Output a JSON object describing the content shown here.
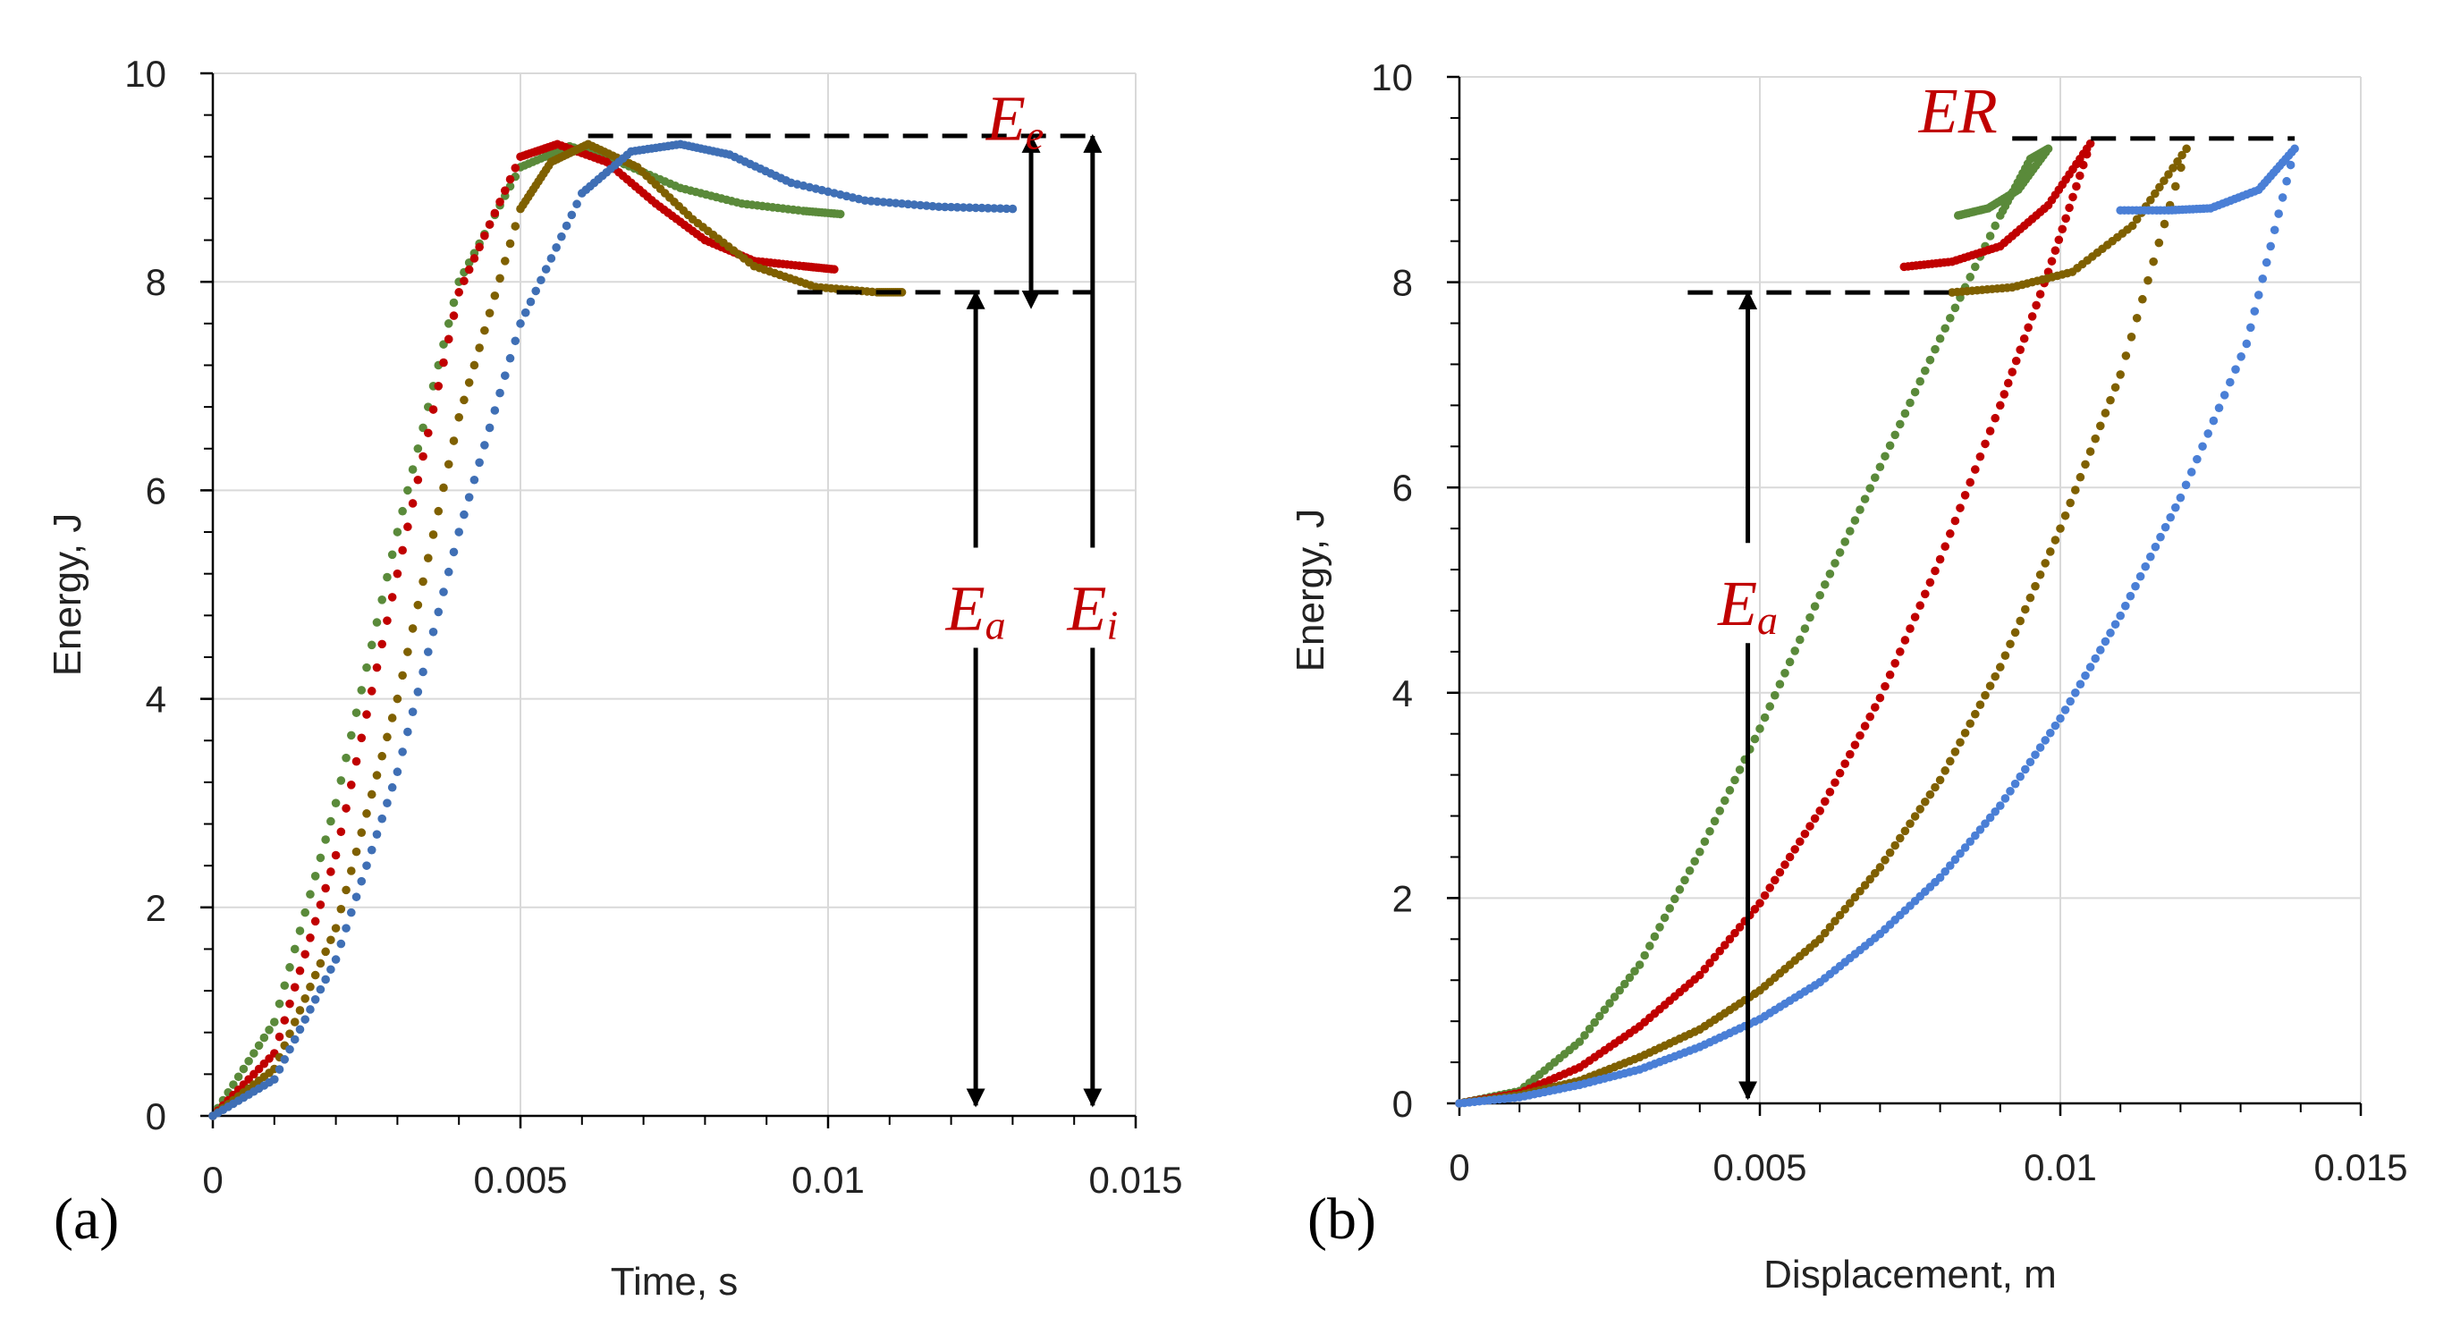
{
  "chart_data": [
    {
      "type": "scatter",
      "panel_label": "(a)",
      "xlabel": "Time, s",
      "ylabel": "Energy, J",
      "xlim": [
        0,
        0.015
      ],
      "ylim": [
        0,
        10
      ],
      "xticks": [
        0,
        0.005,
        0.01,
        0.015
      ],
      "xtick_labels": [
        "0",
        "0.005",
        "0.01",
        "0.015"
      ],
      "yticks": [
        0,
        2,
        4,
        6,
        8,
        10
      ],
      "ytick_labels": [
        "0",
        "2",
        "4",
        "6",
        "8",
        "10"
      ],
      "grid": true,
      "series": [
        {
          "name": "green",
          "color": "#5a8a3a",
          "x": [
            0,
            0.001,
            0.002,
            0.003,
            0.004,
            0.005,
            0.0058,
            0.0066,
            0.0076,
            0.0086,
            0.0096,
            0.0102
          ],
          "y": [
            0,
            0.9,
            3.0,
            5.6,
            8.0,
            9.1,
            9.3,
            9.15,
            8.9,
            8.75,
            8.68,
            8.65
          ]
        },
        {
          "name": "red",
          "color": "#c00000",
          "x": [
            0,
            0.001,
            0.002,
            0.003,
            0.004,
            0.005,
            0.0056,
            0.0064,
            0.0072,
            0.008,
            0.0088,
            0.0096,
            0.0101
          ],
          "y": [
            0,
            0.6,
            2.5,
            5.2,
            7.9,
            9.2,
            9.32,
            9.15,
            8.75,
            8.4,
            8.2,
            8.15,
            8.12
          ]
        },
        {
          "name": "olive",
          "color": "#7f6000",
          "x": [
            0,
            0.001,
            0.002,
            0.003,
            0.004,
            0.005,
            0.0055,
            0.0061,
            0.0069,
            0.0078,
            0.0088,
            0.0098,
            0.0108,
            0.0112
          ],
          "y": [
            0,
            0.45,
            1.8,
            4.0,
            6.7,
            8.7,
            9.15,
            9.32,
            9.1,
            8.6,
            8.15,
            7.95,
            7.9,
            7.9
          ]
        },
        {
          "name": "blue",
          "color": "#3f6fb5",
          "x": [
            0,
            0.001,
            0.002,
            0.003,
            0.004,
            0.005,
            0.006,
            0.0068,
            0.0076,
            0.0084,
            0.0094,
            0.0106,
            0.0118,
            0.013
          ],
          "y": [
            0,
            0.35,
            1.5,
            3.3,
            5.6,
            7.6,
            8.85,
            9.25,
            9.32,
            9.22,
            8.95,
            8.78,
            8.72,
            8.7
          ]
        }
      ],
      "reference_lines": [
        {
          "y": 9.4,
          "x_start": 0.0061,
          "x_end": 0.0143
        },
        {
          "y": 7.9,
          "x_start": 0.0095,
          "x_end": 0.0143
        }
      ],
      "annotations": [
        {
          "base": "E",
          "sub": "e",
          "x": 0.0133,
          "y1": 7.9,
          "y2": 9.4,
          "label_y": 9.55
        },
        {
          "base": "E",
          "sub": "a",
          "x": 0.0124,
          "y1": 0.1,
          "y2": 7.9,
          "label_y": 4.85
        },
        {
          "base": "E",
          "sub": "i",
          "x": 0.0143,
          "y1": 0.1,
          "y2": 9.4,
          "label_y": 4.85
        }
      ],
      "annotation_color": "#c00000"
    },
    {
      "type": "scatter",
      "panel_label": "(b)",
      "xlabel": "Displacement, m",
      "ylabel": "Energy, J",
      "xlim": [
        0,
        0.015
      ],
      "ylim": [
        0,
        10
      ],
      "xticks": [
        0,
        0.005,
        0.01,
        0.015
      ],
      "xtick_labels": [
        "0",
        "0.005",
        "0.01",
        "0.015"
      ],
      "yticks": [
        0,
        2,
        4,
        6,
        8,
        10
      ],
      "ytick_labels": [
        "0",
        "2",
        "4",
        "6",
        "8",
        "10"
      ],
      "grid": true,
      "series": [
        {
          "name": "green",
          "color": "#5a8a3a",
          "x": [
            0,
            0.001,
            0.002,
            0.003,
            0.004,
            0.005,
            0.006,
            0.007,
            0.008,
            0.009,
            0.0095,
            0.0098,
            0.0093,
            0.0088,
            0.0083
          ],
          "y": [
            0,
            0.12,
            0.6,
            1.35,
            2.45,
            3.65,
            4.95,
            6.2,
            7.45,
            8.65,
            9.2,
            9.3,
            8.9,
            8.72,
            8.65
          ]
        },
        {
          "name": "red",
          "color": "#c00000",
          "x": [
            0,
            0.001,
            0.002,
            0.003,
            0.004,
            0.005,
            0.006,
            0.007,
            0.008,
            0.009,
            0.0098,
            0.0105,
            0.0098,
            0.009,
            0.0082,
            0.0074
          ],
          "y": [
            0,
            0.1,
            0.35,
            0.75,
            1.25,
            1.95,
            2.85,
            3.95,
            5.3,
            6.8,
            8.1,
            9.35,
            8.75,
            8.35,
            8.2,
            8.15
          ]
        },
        {
          "name": "olive",
          "color": "#7f6000",
          "x": [
            0,
            0.001,
            0.002,
            0.003,
            0.004,
            0.005,
            0.006,
            0.007,
            0.008,
            0.009,
            0.01,
            0.011,
            0.0121,
            0.0112,
            0.0102,
            0.0092,
            0.0082
          ],
          "y": [
            0,
            0.08,
            0.22,
            0.45,
            0.72,
            1.1,
            1.6,
            2.3,
            3.15,
            4.25,
            5.6,
            7.1,
            9.3,
            8.55,
            8.1,
            7.95,
            7.9
          ]
        },
        {
          "name": "blue",
          "color": "#4a7fd6",
          "x": [
            0,
            0.001,
            0.002,
            0.003,
            0.004,
            0.005,
            0.006,
            0.007,
            0.008,
            0.009,
            0.01,
            0.011,
            0.012,
            0.0131,
            0.0139,
            0.0133,
            0.0125,
            0.0118,
            0.011
          ],
          "y": [
            0,
            0.06,
            0.18,
            0.33,
            0.55,
            0.82,
            1.18,
            1.65,
            2.2,
            2.9,
            3.75,
            4.75,
            5.9,
            7.4,
            9.3,
            8.9,
            8.72,
            8.7,
            8.7
          ]
        }
      ],
      "reference_lines": [
        {
          "y": 9.4,
          "x_start": 0.0092,
          "x_end": 0.0139
        },
        {
          "y": 7.9,
          "x_start": 0.0038,
          "x_end": 0.0083
        }
      ],
      "annotations": [
        {
          "base": "ER",
          "sub": "",
          "x": 0.0083,
          "label_y": 9.65,
          "no_arrow": true
        },
        {
          "base": "E",
          "sub": "a",
          "x": 0.0048,
          "y1": 0.05,
          "y2": 7.9,
          "label_y": 4.85
        }
      ],
      "annotation_color": "#c00000"
    }
  ]
}
